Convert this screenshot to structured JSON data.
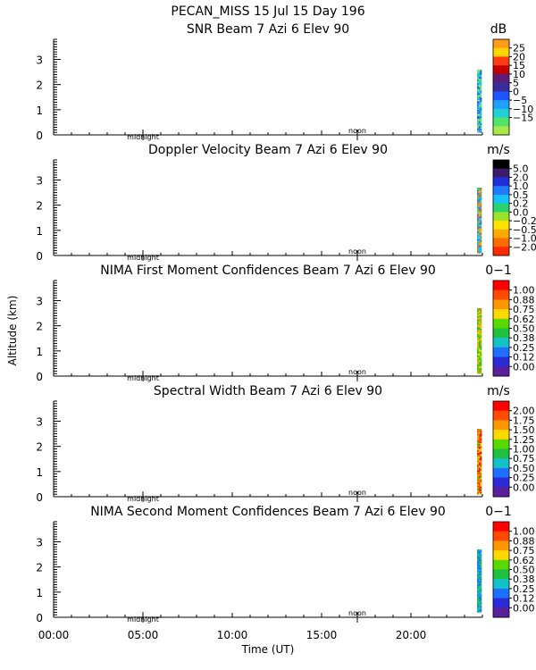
{
  "header": {
    "title": "PECAN_MISS  15 Jul 15 Day 196"
  },
  "y_axis_label": "Altitude (km)",
  "x_axis": {
    "label": "Time (UT)",
    "ticks": [
      "00:00",
      "05:00",
      "10:00",
      "15:00",
      "20:00"
    ],
    "tick_hours": [
      0,
      5,
      10,
      15,
      20
    ],
    "markers": {
      "midnight": "midnight",
      "noon": "noon"
    }
  },
  "chart_data": [
    {
      "type": "heatmap",
      "title": "SNR Beam 7 Azi    6 Elev 90",
      "units": "dB",
      "x_range_hours": [
        0,
        24
      ],
      "ylim": [
        0,
        3.8
      ],
      "y_ticks": [
        0,
        1,
        2,
        3
      ],
      "colorbar_labels": [
        "25",
        "20",
        "15",
        "10",
        "5",
        "0",
        "−5",
        "−10",
        "−15"
      ],
      "colorbar_colors": [
        "#ff9b18",
        "#ffd400",
        "#ff3c14",
        "#c20000",
        "#5a1f7a",
        "#3b2b9b",
        "#1f53ff",
        "#1ea0ff",
        "#23d0d6",
        "#4fe36a",
        "#a7e94a"
      ],
      "data_segment": {
        "hour_start": 23.7,
        "hour_end": 23.95,
        "alt_min_km": 0.1,
        "alt_max_km": 2.6,
        "dominant_colors": [
          "#a7e94a",
          "#4fe36a",
          "#23d0d6",
          "#1ea0ff",
          "#1f53ff"
        ]
      }
    },
    {
      "type": "heatmap",
      "title": "Doppler Velocity Beam 7 Azi    6 Elev 90",
      "units": "m/s",
      "x_range_hours": [
        0,
        24
      ],
      "ylim": [
        0,
        3.8
      ],
      "y_ticks": [
        0,
        1,
        2,
        3
      ],
      "colorbar_labels": [
        "5.0",
        "2.0",
        "1.0",
        "0.5",
        "0.2",
        "0.0",
        "−0.2",
        "−0.5",
        "−1.0",
        "−2.0"
      ],
      "colorbar_colors": [
        "#000000",
        "#3b1b6b",
        "#1f2fd6",
        "#1f7bff",
        "#18c0ff",
        "#27d36a",
        "#9ce22a",
        "#ffe400",
        "#ffaa00",
        "#ff6a00",
        "#ff2a00"
      ],
      "data_segment": {
        "hour_start": 23.7,
        "hour_end": 23.95,
        "alt_min_km": 0.1,
        "alt_max_km": 2.7,
        "dominant_colors": [
          "#18c0ff",
          "#27d36a",
          "#1f7bff",
          "#ffaa00",
          "#ff6a00"
        ]
      }
    },
    {
      "type": "heatmap",
      "title": "NIMA First Moment Confidences Beam 7 Azi    6 Elev 90",
      "units": "0−1",
      "x_range_hours": [
        0,
        24
      ],
      "ylim": [
        0,
        3.8
      ],
      "y_ticks": [
        0,
        1,
        2,
        3
      ],
      "colorbar_labels": [
        "1.00",
        "0.88",
        "0.75",
        "0.62",
        "0.50",
        "0.38",
        "0.25",
        "0.12",
        "0.00"
      ],
      "colorbar_colors": [
        "#ff0000",
        "#ff4a00",
        "#ff9600",
        "#ffd800",
        "#5ad900",
        "#1fbf3f",
        "#12c2c8",
        "#1f6fff",
        "#2a2ad6",
        "#5a1f9b"
      ],
      "data_segment": {
        "hour_start": 23.7,
        "hour_end": 23.95,
        "alt_min_km": 0.1,
        "alt_max_km": 2.7,
        "dominant_colors": [
          "#5ad900",
          "#1fbf3f",
          "#ffd800",
          "#ff9600"
        ]
      }
    },
    {
      "type": "heatmap",
      "title": "Spectral Width Beam 7 Azi    6 Elev 90",
      "units": "m/s",
      "x_range_hours": [
        0,
        24
      ],
      "ylim": [
        0,
        3.8
      ],
      "y_ticks": [
        0,
        1,
        2,
        3
      ],
      "colorbar_labels": [
        "2.00",
        "1.75",
        "1.50",
        "1.25",
        "1.00",
        "0.75",
        "0.50",
        "0.25",
        "0.00"
      ],
      "colorbar_colors": [
        "#ff0000",
        "#ff4a00",
        "#ff9600",
        "#ffd800",
        "#5ad900",
        "#1fbf3f",
        "#12c2c8",
        "#1f6fff",
        "#2a2ad6",
        "#5a1f9b"
      ],
      "data_segment": {
        "hour_start": 23.7,
        "hour_end": 23.95,
        "alt_min_km": 0.1,
        "alt_max_km": 2.7,
        "dominant_colors": [
          "#5ad900",
          "#ffd800",
          "#ff9600",
          "#ff4a00",
          "#ff0000"
        ]
      }
    },
    {
      "type": "heatmap",
      "title": "NIMA Second Moment Confidences Beam 7 Azi    6 Elev 90",
      "units": "0−1",
      "x_range_hours": [
        0,
        24
      ],
      "ylim": [
        0,
        3.8
      ],
      "y_ticks": [
        0,
        1,
        2,
        3
      ],
      "colorbar_labels": [
        "1.00",
        "0.88",
        "0.75",
        "0.62",
        "0.50",
        "0.38",
        "0.25",
        "0.12",
        "0.00"
      ],
      "colorbar_colors": [
        "#ff0000",
        "#ff4a00",
        "#ff9600",
        "#ffd800",
        "#5ad900",
        "#1fbf3f",
        "#12c2c8",
        "#1f6fff",
        "#2a2ad6",
        "#5a1f9b"
      ],
      "data_segment": {
        "hour_start": 23.7,
        "hour_end": 23.95,
        "alt_min_km": 0.2,
        "alt_max_km": 2.7,
        "dominant_colors": [
          "#12c2c8",
          "#1f6fff",
          "#1fbf3f"
        ]
      }
    }
  ]
}
